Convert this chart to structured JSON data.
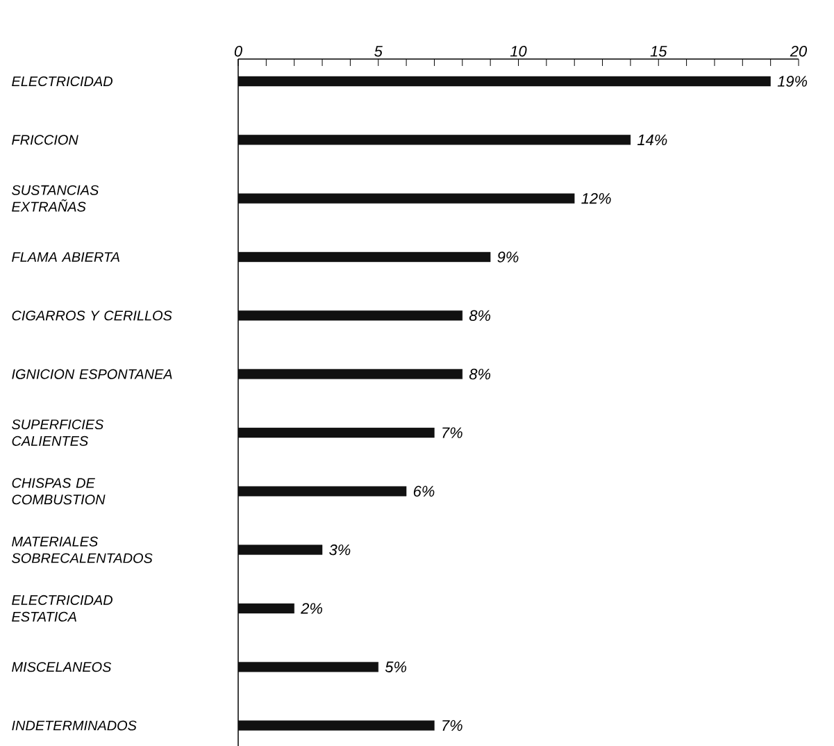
{
  "chart_data": {
    "type": "bar",
    "orientation": "horizontal",
    "categories": [
      "ELECTRICIDAD",
      "FRICCION",
      "SUSTANCIAS EXTRAÑAS",
      "FLAMA ABIERTA",
      "CIGARROS Y CERILLOS",
      "IGNICION ESPONTANEA",
      "SUPERFICIES CALIENTES",
      "CHISPAS DE COMBUSTION",
      "MATERIALES SOBRECALENTADOS",
      "ELECTRICIDAD ESTATICA",
      "MISCELANEOS",
      "INDETERMINADOS"
    ],
    "values": [
      19,
      14,
      12,
      9,
      8,
      8,
      7,
      6,
      3,
      2,
      5,
      7
    ],
    "value_labels": [
      "19%",
      "14%",
      "12%",
      "9%",
      "8%",
      "8%",
      "7%",
      "6%",
      "3%",
      "2%",
      "5%",
      "7%"
    ],
    "color": "#111111",
    "xlim": [
      0,
      20
    ],
    "xticks": [
      0,
      {
        "value": 1,
        "label": null
      },
      {
        "value": 2,
        "label": null
      },
      {
        "value": 3,
        "label": null
      },
      {
        "value": 4,
        "label": null
      },
      5,
      {
        "value": 6,
        "label": null
      },
      {
        "value": 7,
        "label": null
      },
      {
        "value": 8,
        "label": null
      },
      {
        "value": 9,
        "label": null
      },
      10,
      {
        "value": 11,
        "label": null
      },
      {
        "value": 12,
        "label": null
      },
      {
        "value": 13,
        "label": null
      },
      {
        "value": 14,
        "label": null
      },
      15,
      {
        "value": 16,
        "label": null
      },
      {
        "value": 17,
        "label": null
      },
      {
        "value": 18,
        "label": null
      },
      {
        "value": 19,
        "label": null
      },
      20
    ]
  }
}
